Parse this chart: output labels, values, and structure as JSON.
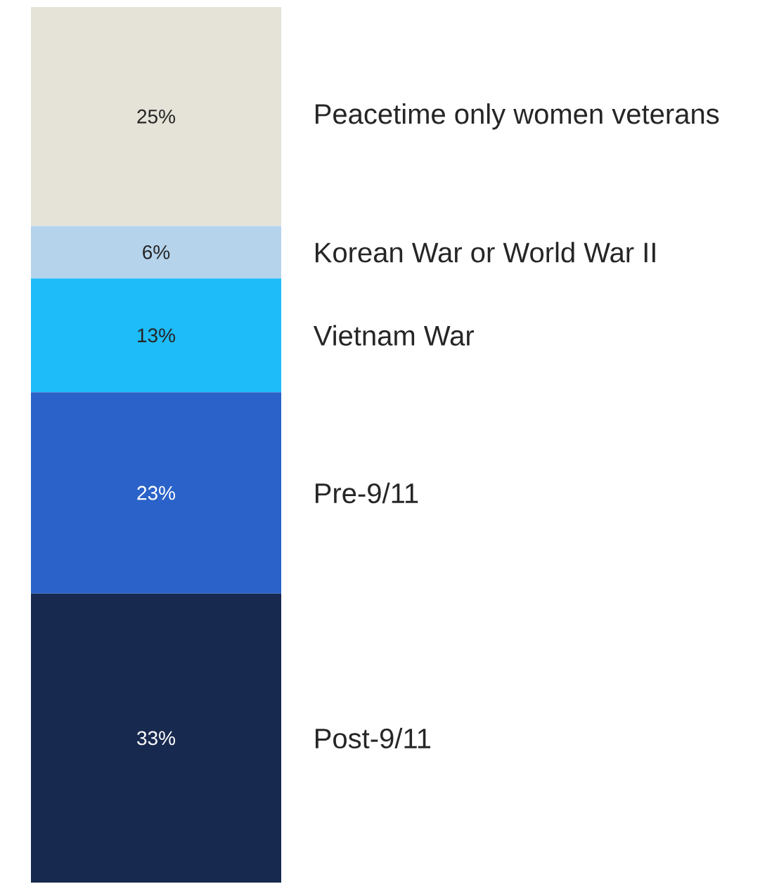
{
  "chart_data": {
    "type": "bar",
    "stacked": true,
    "categories": [
      null
    ],
    "series": [
      {
        "name": "Post-9/11",
        "color": "#18294f",
        "values": [
          33
        ],
        "value_labels": [
          "33%"
        ]
      },
      {
        "name": "Pre-9/11",
        "color": "#2a62c9",
        "values": [
          23
        ],
        "value_labels": [
          "23%"
        ]
      },
      {
        "name": "Vietnam War",
        "color": "#1ebcf8",
        "values": [
          13
        ],
        "value_labels": [
          "13%"
        ]
      },
      {
        "name": "Korean War or World War II",
        "color": "#b6d3ec",
        "values": [
          6
        ],
        "value_labels": [
          "6%"
        ]
      },
      {
        "name": "Peacetime only women veterans",
        "color": "#e5e3d8",
        "values": [
          25
        ],
        "value_labels": [
          "25%"
        ]
      }
    ]
  }
}
